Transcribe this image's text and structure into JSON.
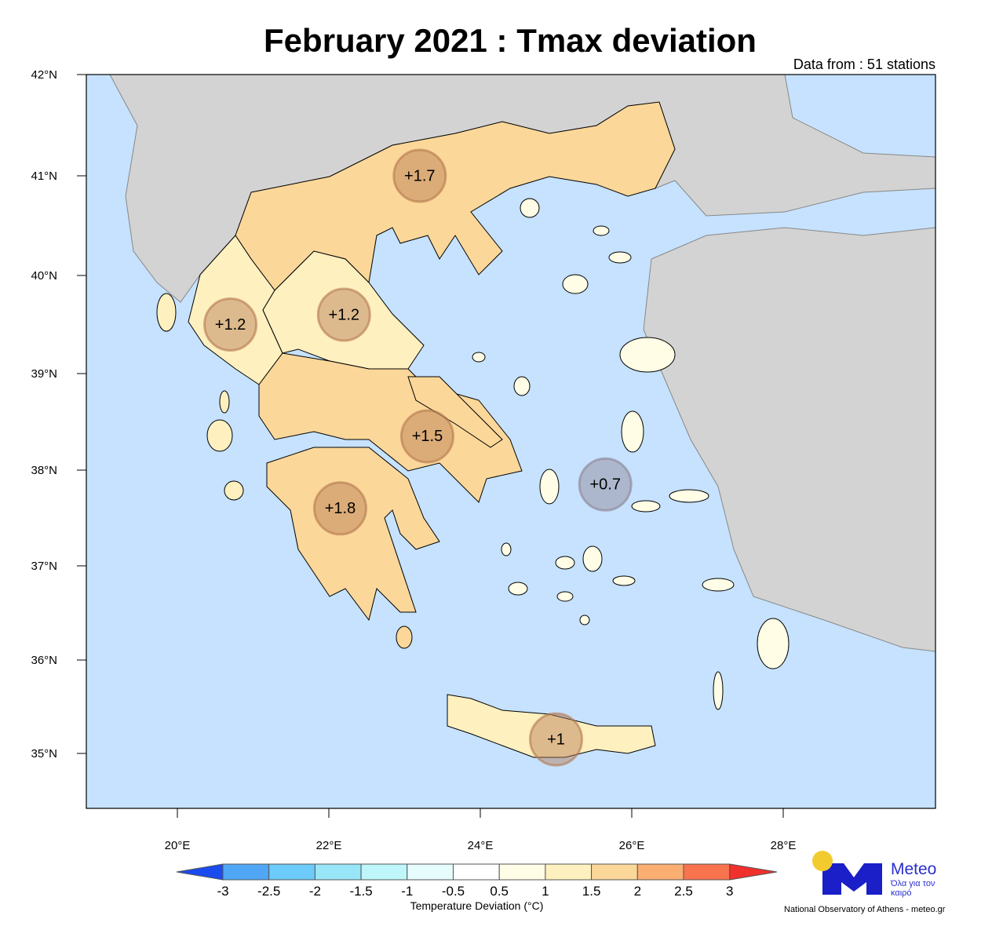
{
  "title": "February 2021 : Tmax deviation",
  "stations_note": "Data from : 51 stations",
  "colors": {
    "sea": "#C6E2FF",
    "foreign_land": "#D3D3D3",
    "marker_warm": "#B4784F",
    "marker_neutral": "#8C8290"
  },
  "chart_data": {
    "type": "map",
    "lat_ticks": [
      {
        "v": 42,
        "label": "42°N"
      },
      {
        "v": 41,
        "label": "41°N"
      },
      {
        "v": 40,
        "label": "40°N"
      },
      {
        "v": 39,
        "label": "39°N"
      },
      {
        "v": 38,
        "label": "38°N"
      },
      {
        "v": 37,
        "label": "37°N"
      },
      {
        "v": 36,
        "label": "36°N"
      },
      {
        "v": 35,
        "label": "35°N"
      }
    ],
    "lon_ticks": [
      {
        "v": 20,
        "label": "20°E"
      },
      {
        "v": 22,
        "label": "22°E"
      },
      {
        "v": 24,
        "label": "24°E"
      },
      {
        "v": 26,
        "label": "26°E"
      },
      {
        "v": 28,
        "label": "28°E"
      }
    ],
    "regions": [
      {
        "value": 1.7,
        "color": "#FBD79A"
      },
      {
        "value": 1.2,
        "color": "#FFF0C0"
      },
      {
        "value": 1.2,
        "color": "#FFF0C0"
      },
      {
        "value": 1.5,
        "color": "#FBD79A"
      },
      {
        "value": 1.8,
        "color": "#FBD79A"
      },
      {
        "value": 0.7,
        "color": "#FFFDE6"
      },
      {
        "value": 1.0,
        "color": "#FFF0C0"
      }
    ],
    "markers": [
      {
        "label": "+1.7",
        "lon": 23.2,
        "lat": 41.0,
        "tone": "warm"
      },
      {
        "label": "+1.2",
        "lon": 20.7,
        "lat": 39.5,
        "tone": "warm"
      },
      {
        "label": "+1.2",
        "lon": 22.2,
        "lat": 39.6,
        "tone": "warm"
      },
      {
        "label": "+1.5",
        "lon": 23.3,
        "lat": 38.35,
        "tone": "warm"
      },
      {
        "label": "+1.8",
        "lon": 22.15,
        "lat": 37.6,
        "tone": "warm"
      },
      {
        "label": "+0.7",
        "lon": 25.65,
        "lat": 37.85,
        "tone": "neutral"
      },
      {
        "label": "+1",
        "lon": 25.0,
        "lat": 35.15,
        "tone": "warm"
      }
    ],
    "colorbar": {
      "title": "Temperature Deviation (°C)",
      "labels": [
        "-3",
        "-2.5",
        "-2",
        "-1.5",
        "-1",
        "-0.5",
        "0.5",
        "1",
        "1.5",
        "2",
        "2.5",
        "3"
      ],
      "colors": [
        "#4FA6F5",
        "#6CCBF8",
        "#98E6F8",
        "#BEF6FA",
        "#E6FCFD",
        "#FFFFFF",
        "#FFFDE6",
        "#FFF0C0",
        "#FBD79A",
        "#FBAE72",
        "#F8734E"
      ],
      "under_color": "#1A4BEF",
      "over_color": "#F0302C"
    }
  },
  "logo": {
    "name": "Meteo",
    "tagline": "Όλα για τον καιρό"
  },
  "credit": "National Observatory of Athens - meteo.gr"
}
